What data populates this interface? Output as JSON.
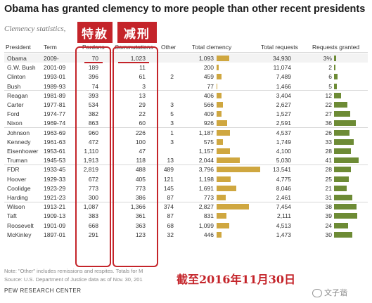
{
  "title": "Obama has granted clemency to more people than other recent presidents",
  "subtitle": "Clemency statistics,",
  "stamps": {
    "pardons": "特赦",
    "commutations": "减刑"
  },
  "headers": {
    "president": "President",
    "term": "Term",
    "pardons": "Pardons",
    "commutations": "Commutations",
    "other": "Other",
    "total": "Total clemency",
    "requests": "Total requests",
    "granted": "Requests granted"
  },
  "chart_data": {
    "type": "table",
    "columns": [
      "President",
      "Term",
      "Pardons",
      "Commutations",
      "Other",
      "Total clemency",
      "Total requests",
      "Requests granted"
    ],
    "rows": [
      {
        "president": "Obama",
        "term": "2009-",
        "pardons": "70",
        "commutations": "1,023",
        "other": "",
        "total": "1,093",
        "total_value": 1093,
        "requests": "34,930",
        "granted": "3%",
        "granted_value": 3
      },
      {
        "president": "G.W. Bush",
        "term": "2001-09",
        "pardons": "189",
        "commutations": "11",
        "other": "",
        "total": "200",
        "total_value": 200,
        "requests": "11,074",
        "granted": "2",
        "granted_value": 2
      },
      {
        "president": "Clinton",
        "term": "1993-01",
        "pardons": "396",
        "commutations": "61",
        "other": "2",
        "total": "459",
        "total_value": 459,
        "requests": "7,489",
        "granted": "6",
        "granted_value": 6
      },
      {
        "president": "Bush",
        "term": "1989-93",
        "pardons": "74",
        "commutations": "3",
        "other": "",
        "total": "77",
        "total_value": 77,
        "requests": "1,466",
        "granted": "5",
        "granted_value": 5
      },
      {
        "president": "Reagan",
        "term": "1981-89",
        "pardons": "393",
        "commutations": "13",
        "other": "",
        "total": "406",
        "total_value": 406,
        "requests": "3,404",
        "granted": "12",
        "granted_value": 12
      },
      {
        "president": "Carter",
        "term": "1977-81",
        "pardons": "534",
        "commutations": "29",
        "other": "3",
        "total": "566",
        "total_value": 566,
        "requests": "2,627",
        "granted": "22",
        "granted_value": 22
      },
      {
        "president": "Ford",
        "term": "1974-77",
        "pardons": "382",
        "commutations": "22",
        "other": "5",
        "total": "409",
        "total_value": 409,
        "requests": "1,527",
        "granted": "27",
        "granted_value": 27
      },
      {
        "president": "Nixon",
        "term": "1969-74",
        "pardons": "863",
        "commutations": "60",
        "other": "3",
        "total": "926",
        "total_value": 926,
        "requests": "2,591",
        "granted": "36",
        "granted_value": 36
      },
      {
        "president": "Johnson",
        "term": "1963-69",
        "pardons": "960",
        "commutations": "226",
        "other": "1",
        "total": "1,187",
        "total_value": 1187,
        "requests": "4,537",
        "granted": "26",
        "granted_value": 26
      },
      {
        "president": "Kennedy",
        "term": "1961-63",
        "pardons": "472",
        "commutations": "100",
        "other": "3",
        "total": "575",
        "total_value": 575,
        "requests": "1,749",
        "granted": "33",
        "granted_value": 33
      },
      {
        "president": "Eisenhower",
        "term": "1953-61",
        "pardons": "1,110",
        "commutations": "47",
        "other": "",
        "total": "1,157",
        "total_value": 1157,
        "requests": "4,100",
        "granted": "28",
        "granted_value": 28
      },
      {
        "president": "Truman",
        "term": "1945-53",
        "pardons": "1,913",
        "commutations": "118",
        "other": "13",
        "total": "2,044",
        "total_value": 2044,
        "requests": "5,030",
        "granted": "41",
        "granted_value": 41
      },
      {
        "president": "FDR",
        "term": "1933-45",
        "pardons": "2,819",
        "commutations": "488",
        "other": "489",
        "total": "3,796",
        "total_value": 3796,
        "requests": "13,541",
        "granted": "28",
        "granted_value": 28
      },
      {
        "president": "Hoover",
        "term": "1929-33",
        "pardons": "672",
        "commutations": "405",
        "other": "121",
        "total": "1,198",
        "total_value": 1198,
        "requests": "4,775",
        "granted": "25",
        "granted_value": 25
      },
      {
        "president": "Coolidge",
        "term": "1923-29",
        "pardons": "773",
        "commutations": "773",
        "other": "145",
        "total": "1,691",
        "total_value": 1691,
        "requests": "8,046",
        "granted": "21",
        "granted_value": 21
      },
      {
        "president": "Harding",
        "term": "1921-23",
        "pardons": "300",
        "commutations": "386",
        "other": "87",
        "total": "773",
        "total_value": 773,
        "requests": "2,461",
        "granted": "31",
        "granted_value": 31
      },
      {
        "president": "Wilson",
        "term": "1913-21",
        "pardons": "1,087",
        "commutations": "1,366",
        "other": "374",
        "total": "2,827",
        "total_value": 2827,
        "requests": "7,454",
        "granted": "38",
        "granted_value": 38
      },
      {
        "president": "Taft",
        "term": "1909-13",
        "pardons": "383",
        "commutations": "361",
        "other": "87",
        "total": "831",
        "total_value": 831,
        "requests": "2,111",
        "granted": "39",
        "granted_value": 39
      },
      {
        "president": "Roosevelt",
        "term": "1901-09",
        "pardons": "668",
        "commutations": "363",
        "other": "68",
        "total": "1,099",
        "total_value": 1099,
        "requests": "4,513",
        "granted": "24",
        "granted_value": 24
      },
      {
        "president": "McKinley",
        "term": "1897-01",
        "pardons": "291",
        "commutations": "123",
        "other": "32",
        "total": "446",
        "total_value": 446,
        "requests": "1,473",
        "granted": "30",
        "granted_value": 30
      }
    ],
    "colors": {
      "total_bar": "#cfa740",
      "granted_bar": "#6d8b35",
      "annotation": "#c4242a"
    }
  },
  "notes": {
    "line1": "Note: \"Other\" includes remissions and respites. Totals for M",
    "line2": "Source: U.S. Department of Justice data as of Nov. 30, 201"
  },
  "date_annotation": "截至2016年11月30日",
  "source": "PEW RESEARCH CENTER",
  "watermark": "文子谐"
}
